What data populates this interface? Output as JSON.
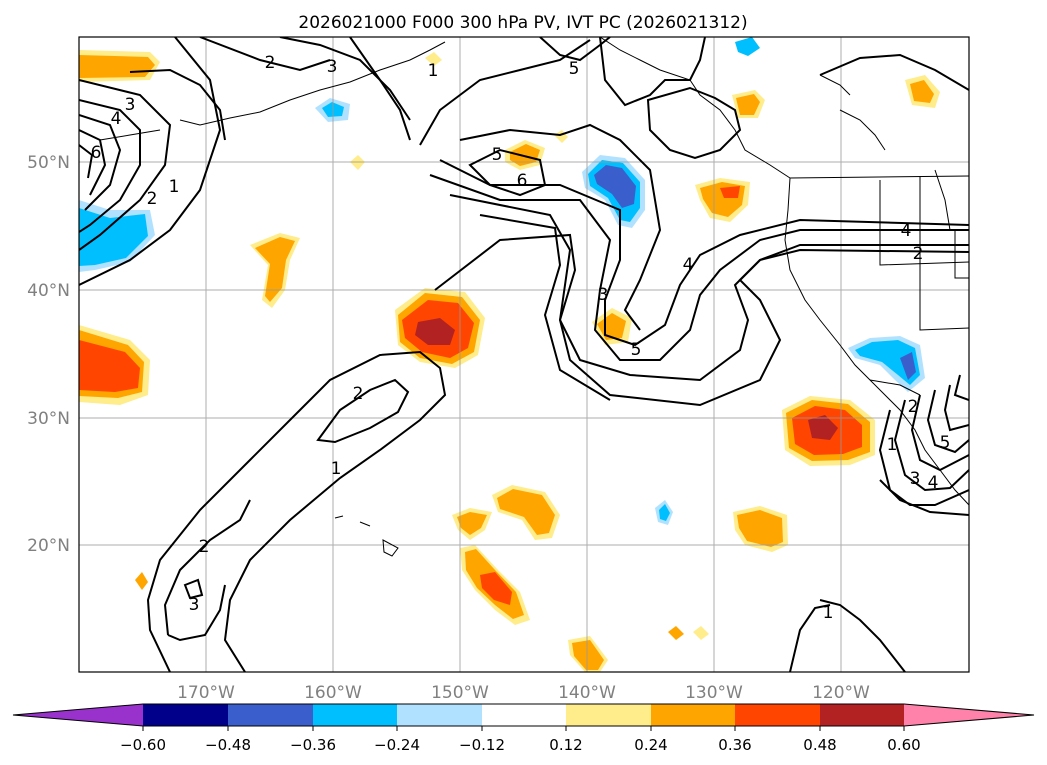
{
  "title": "2026021000 F000 300 hPa PV, IVT PC (2026021312)",
  "map": {
    "lon_ticks": [
      "170°W",
      "160°W",
      "150°W",
      "140°W",
      "130°W",
      "120°W"
    ],
    "lat_ticks": [
      "50°N",
      "40°N",
      "30°N",
      "20°N"
    ],
    "tick_color": "#808080"
  },
  "contour_labels": [
    {
      "text": "2"
    },
    {
      "text": "3"
    },
    {
      "text": "1"
    },
    {
      "text": "5"
    },
    {
      "text": "3"
    },
    {
      "text": "4"
    },
    {
      "text": "6"
    },
    {
      "text": "2"
    },
    {
      "text": "1"
    },
    {
      "text": "5"
    },
    {
      "text": "6"
    },
    {
      "text": "3"
    },
    {
      "text": "5"
    },
    {
      "text": "4"
    },
    {
      "text": "4"
    },
    {
      "text": "2"
    },
    {
      "text": "2"
    },
    {
      "text": "1"
    },
    {
      "text": "2"
    },
    {
      "text": "3"
    },
    {
      "text": "1"
    },
    {
      "text": "2"
    },
    {
      "text": "5"
    },
    {
      "text": "3"
    },
    {
      "text": "4"
    },
    {
      "text": "1"
    }
  ],
  "colorbar": {
    "ticks": [
      "−0.60",
      "−0.48",
      "−0.36",
      "−0.24",
      "−0.12",
      "0.12",
      "0.24",
      "0.36",
      "0.48",
      "0.60"
    ],
    "colors": {
      "under": "#9932cc",
      "c1": "#00008b",
      "c2": "#3a5fcd",
      "c3": "#00bfff",
      "c4": "#b0e2ff",
      "c5": "#ffffff",
      "c6": "#ffec8b",
      "c7": "#ffa500",
      "c8": "#ff4500",
      "c9": "#b22222",
      "over": "#ff82ab"
    }
  }
}
